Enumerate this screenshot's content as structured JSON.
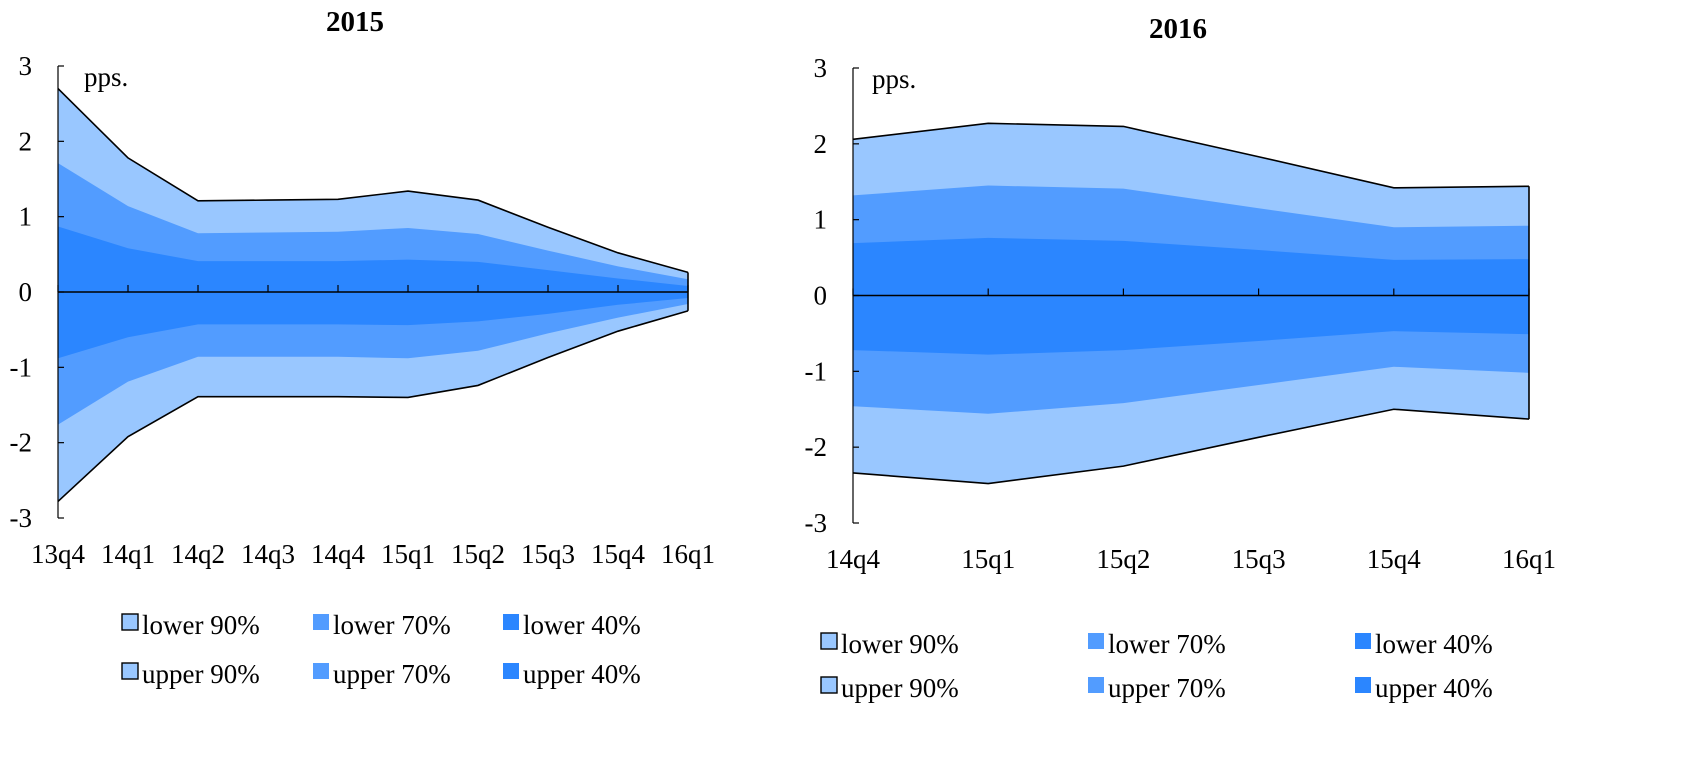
{
  "colors": {
    "band_90": "#99c7ff",
    "band_70": "#529cff",
    "band_40": "#2b86ff",
    "outline": "#000000"
  },
  "chart_data": [
    {
      "type": "area",
      "title": "2015",
      "ylabel": "pps.",
      "ylim": [
        -3,
        3
      ],
      "yticks": [
        3,
        2,
        1,
        0,
        -1,
        -2,
        -3
      ],
      "categories": [
        "13q4",
        "14q1",
        "14q2",
        "14q3",
        "14q4",
        "15q1",
        "15q2",
        "15q3",
        "15q4",
        "16q1"
      ],
      "legend": [
        "lower 90%",
        "lower 70%",
        "lower 40%",
        "upper 90%",
        "upper 70%",
        "upper 40%"
      ],
      "legend_position": "bottom",
      "series": [
        {
          "name": "upper 90%",
          "values": [
            2.7,
            1.78,
            1.21,
            1.22,
            1.23,
            1.34,
            1.22,
            0.86,
            0.52,
            0.26
          ]
        },
        {
          "name": "upper 70%",
          "values": [
            1.71,
            1.14,
            0.78,
            0.79,
            0.8,
            0.85,
            0.77,
            0.55,
            0.34,
            0.17
          ]
        },
        {
          "name": "upper 40%",
          "values": [
            0.87,
            0.58,
            0.41,
            0.41,
            0.41,
            0.43,
            0.4,
            0.29,
            0.18,
            0.08
          ]
        },
        {
          "name": "lower 40%",
          "values": [
            -0.88,
            -0.6,
            -0.43,
            -0.43,
            -0.43,
            -0.44,
            -0.39,
            -0.29,
            -0.17,
            -0.08
          ]
        },
        {
          "name": "lower 70%",
          "values": [
            -1.76,
            -1.19,
            -0.86,
            -0.86,
            -0.86,
            -0.88,
            -0.78,
            -0.55,
            -0.34,
            -0.16
          ]
        },
        {
          "name": "lower 90%",
          "values": [
            -2.78,
            -1.92,
            -1.39,
            -1.39,
            -1.39,
            -1.4,
            -1.24,
            -0.87,
            -0.52,
            -0.25
          ]
        }
      ]
    },
    {
      "type": "area",
      "title": "2016",
      "ylabel": "pps.",
      "ylim": [
        -3,
        3
      ],
      "yticks": [
        3,
        2,
        1,
        0,
        -1,
        -2,
        -3
      ],
      "categories": [
        "14q4",
        "15q1",
        "15q2",
        "15q3",
        "15q4",
        "16q1"
      ],
      "legend": [
        "lower 90%",
        "lower 70%",
        "lower 40%",
        "upper 90%",
        "upper 70%",
        "upper 40%"
      ],
      "legend_position": "bottom",
      "series": [
        {
          "name": "upper 90%",
          "values": [
            2.06,
            2.27,
            2.23,
            1.83,
            1.42,
            1.44
          ]
        },
        {
          "name": "upper 70%",
          "values": [
            1.32,
            1.45,
            1.41,
            1.15,
            0.9,
            0.92
          ]
        },
        {
          "name": "upper 40%",
          "values": [
            0.69,
            0.76,
            0.72,
            0.6,
            0.47,
            0.48
          ]
        },
        {
          "name": "lower 40%",
          "values": [
            -0.72,
            -0.78,
            -0.72,
            -0.6,
            -0.47,
            -0.51
          ]
        },
        {
          "name": "lower 70%",
          "values": [
            -1.46,
            -1.56,
            -1.42,
            -1.18,
            -0.94,
            -1.02
          ]
        },
        {
          "name": "lower 90%",
          "values": [
            -2.34,
            -2.48,
            -2.25,
            -1.87,
            -1.5,
            -1.63
          ]
        }
      ]
    }
  ]
}
